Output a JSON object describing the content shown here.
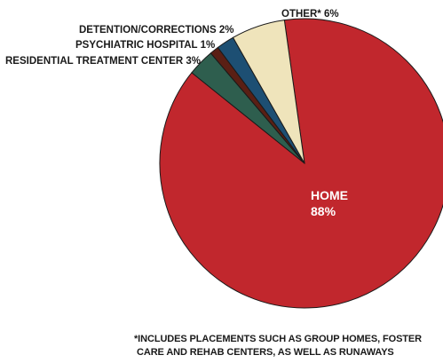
{
  "chart_data": {
    "type": "pie",
    "slices": [
      {
        "name": "HOME",
        "value": 88,
        "label": "88%",
        "color": "#c1272d"
      },
      {
        "name": "RESIDENTIAL TREATMENT CENTER",
        "value": 3,
        "label": "3%",
        "color": "#2e5e4e"
      },
      {
        "name": "PSYCHIATRIC HOSPITAL",
        "value": 1,
        "label": "1%",
        "color": "#5a1f14"
      },
      {
        "name": "DETENTION/CORRECTIONS",
        "value": 2,
        "label": "2%",
        "color": "#1d4f73"
      },
      {
        "name": "OTHER*",
        "value": 6,
        "label": "6%",
        "color": "#efe4bb"
      }
    ],
    "footnote_lines": [
      "*INCLUDES PLACEMENTS SUCH AS GROUP HOMES, FOSTER",
      "CARE AND REHAB CENTERS, AS WELL AS RUNAWAYS"
    ]
  }
}
